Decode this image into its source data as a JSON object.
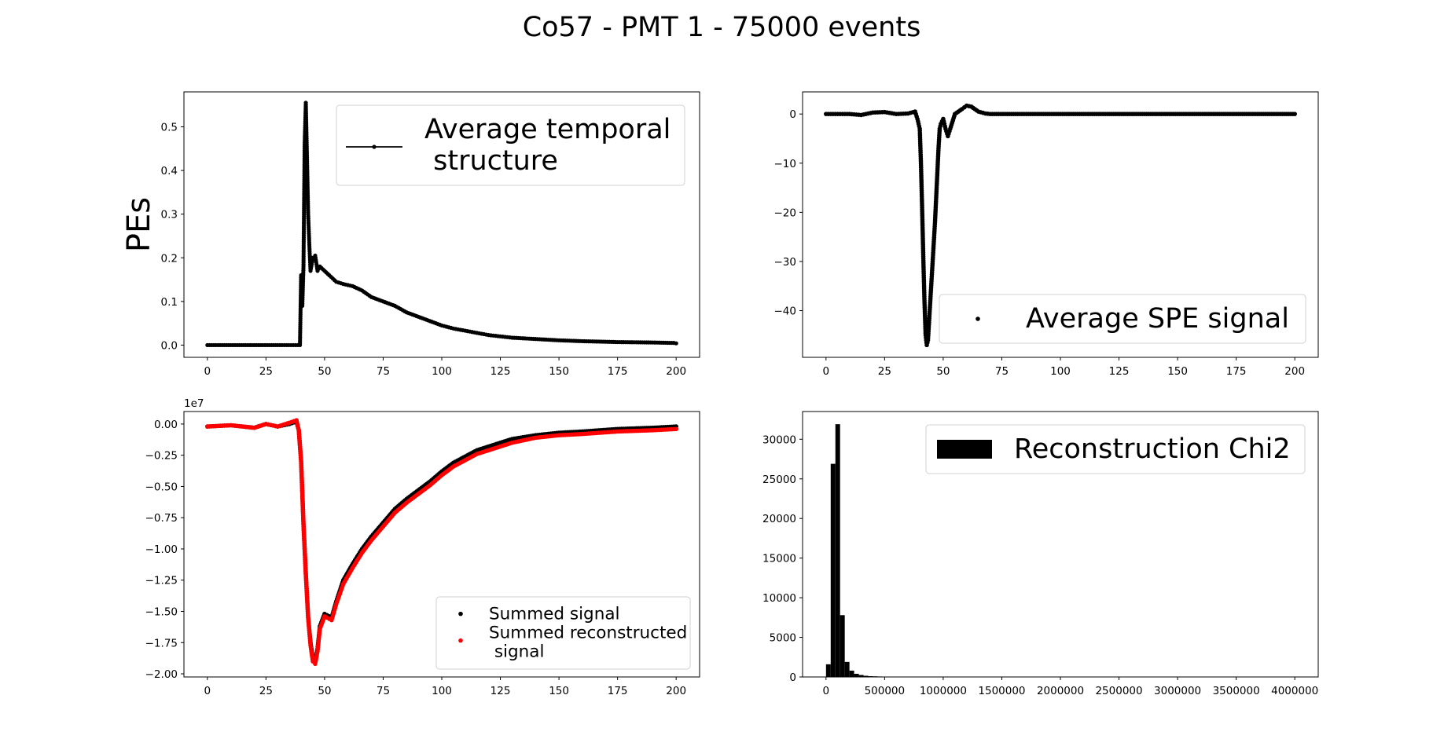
{
  "figure": {
    "suptitle": "Co57 - PMT 1 - 75000 events"
  },
  "chart_data": [
    {
      "id": "temporal",
      "type": "line",
      "marker": "dot",
      "ylabel": "PEs",
      "xlim": [
        -10,
        210
      ],
      "ylim": [
        -0.028,
        0.58
      ],
      "xticks": [
        0,
        25,
        50,
        75,
        100,
        125,
        150,
        175,
        200
      ],
      "yticks": [
        0.0,
        0.1,
        0.2,
        0.3,
        0.4,
        0.5
      ],
      "ytick_decimals": 1,
      "legend": {
        "position": "upper right",
        "entries": [
          "Average temporal",
          " structure"
        ]
      },
      "series": [
        {
          "name": "Average temporal structure",
          "color": "#000000",
          "points": [
            [
              0,
              0
            ],
            [
              10,
              0
            ],
            [
              20,
              0
            ],
            [
              30,
              0
            ],
            [
              39.5,
              0
            ],
            [
              40,
              0.16
            ],
            [
              40.5,
              0.09
            ],
            [
              41,
              0.18
            ],
            [
              41.5,
              0.46
            ],
            [
              42,
              0.555
            ],
            [
              42.5,
              0.43
            ],
            [
              43,
              0.3
            ],
            [
              43.5,
              0.23
            ],
            [
              44,
              0.17
            ],
            [
              45,
              0.2
            ],
            [
              46,
              0.205
            ],
            [
              47,
              0.17
            ],
            [
              48,
              0.18
            ],
            [
              50,
              0.17
            ],
            [
              52,
              0.16
            ],
            [
              55,
              0.145
            ],
            [
              58,
              0.14
            ],
            [
              62,
              0.135
            ],
            [
              66,
              0.125
            ],
            [
              70,
              0.11
            ],
            [
              75,
              0.1
            ],
            [
              80,
              0.09
            ],
            [
              85,
              0.075
            ],
            [
              90,
              0.065
            ],
            [
              95,
              0.055
            ],
            [
              100,
              0.045
            ],
            [
              105,
              0.038
            ],
            [
              110,
              0.033
            ],
            [
              115,
              0.028
            ],
            [
              120,
              0.023
            ],
            [
              125,
              0.02
            ],
            [
              130,
              0.017
            ],
            [
              140,
              0.014
            ],
            [
              150,
              0.011
            ],
            [
              160,
              0.009
            ],
            [
              175,
              0.007
            ],
            [
              190,
              0.006
            ],
            [
              199,
              0.005
            ],
            [
              200,
              0.004
            ]
          ]
        }
      ]
    },
    {
      "id": "spe",
      "type": "scatter",
      "xlim": [
        -10,
        210
      ],
      "ylim": [
        -49.5,
        4.5
      ],
      "xticks": [
        0,
        25,
        50,
        75,
        100,
        125,
        150,
        175,
        200
      ],
      "yticks": [
        0,
        -10,
        -20,
        -30,
        -40
      ],
      "ytick_decimals": 0,
      "legend": {
        "position": "lower right",
        "entries": [
          "Average SPE signal"
        ]
      },
      "series": [
        {
          "name": "Average SPE signal",
          "color": "#000000",
          "points": [
            [
              0,
              0
            ],
            [
              5,
              0
            ],
            [
              10,
              0
            ],
            [
              15,
              -0.2
            ],
            [
              20,
              0.3
            ],
            [
              25,
              0.4
            ],
            [
              30,
              0
            ],
            [
              35,
              0.1
            ],
            [
              38,
              0.5
            ],
            [
              39,
              -1
            ],
            [
              40,
              -3
            ],
            [
              40.5,
              -10
            ],
            [
              41,
              -19
            ],
            [
              41.5,
              -29
            ],
            [
              42,
              -38
            ],
            [
              42.5,
              -45
            ],
            [
              43,
              -47
            ],
            [
              43.5,
              -46
            ],
            [
              44,
              -42
            ],
            [
              44.5,
              -38
            ],
            [
              45,
              -34
            ],
            [
              45.5,
              -30
            ],
            [
              46,
              -26
            ],
            [
              46.5,
              -22
            ],
            [
              47,
              -17
            ],
            [
              47.5,
              -12
            ],
            [
              48,
              -7
            ],
            [
              48.5,
              -3
            ],
            [
              49,
              -2
            ],
            [
              50,
              -1
            ],
            [
              51,
              -3
            ],
            [
              52,
              -4.5
            ],
            [
              53,
              -3
            ],
            [
              55,
              0
            ],
            [
              58,
              1
            ],
            [
              60,
              1.7
            ],
            [
              62,
              1.5
            ],
            [
              65,
              0.5
            ],
            [
              68,
              0.1
            ],
            [
              70,
              0
            ],
            [
              80,
              0
            ],
            [
              90,
              0
            ],
            [
              100,
              0
            ],
            [
              120,
              0
            ],
            [
              150,
              0
            ],
            [
              175,
              0
            ],
            [
              200,
              0
            ]
          ]
        }
      ]
    },
    {
      "id": "summed",
      "type": "scatter",
      "offset_text": "1e7",
      "xlim": [
        -10,
        210
      ],
      "ylim": [
        -2.025,
        0.1
      ],
      "xticks": [
        0,
        25,
        50,
        75,
        100,
        125,
        150,
        175,
        200
      ],
      "yticks": [
        0.0,
        -0.25,
        -0.5,
        -0.75,
        -1.0,
        -1.25,
        -1.5,
        -1.75,
        -2.0
      ],
      "ytick_decimals": 2,
      "legend": {
        "position": "lower right",
        "entries": [
          "Summed signal",
          "Summed reconstructed",
          " signal"
        ]
      },
      "series": [
        {
          "name": "Summed signal",
          "color": "#000000",
          "points": [
            [
              0,
              -0.02
            ],
            [
              10,
              -0.01
            ],
            [
              20,
              -0.03
            ],
            [
              25,
              0.0
            ],
            [
              30,
              -0.02
            ],
            [
              35,
              0.0
            ],
            [
              38,
              0.02
            ],
            [
              39,
              -0.05
            ],
            [
              40,
              -0.3
            ],
            [
              41,
              -0.8
            ],
            [
              42,
              -1.2
            ],
            [
              43,
              -1.55
            ],
            [
              44,
              -1.75
            ],
            [
              45,
              -1.88
            ],
            [
              46,
              -1.9
            ],
            [
              47,
              -1.8
            ],
            [
              48,
              -1.62
            ],
            [
              50,
              -1.52
            ],
            [
              53,
              -1.55
            ],
            [
              55,
              -1.42
            ],
            [
              58,
              -1.25
            ],
            [
              62,
              -1.12
            ],
            [
              66,
              -1.0
            ],
            [
              70,
              -0.9
            ],
            [
              75,
              -0.79
            ],
            [
              80,
              -0.68
            ],
            [
              85,
              -0.6
            ],
            [
              90,
              -0.53
            ],
            [
              95,
              -0.46
            ],
            [
              100,
              -0.38
            ],
            [
              105,
              -0.31
            ],
            [
              110,
              -0.26
            ],
            [
              115,
              -0.21
            ],
            [
              120,
              -0.18
            ],
            [
              125,
              -0.15
            ],
            [
              130,
              -0.12
            ],
            [
              140,
              -0.09
            ],
            [
              150,
              -0.07
            ],
            [
              160,
              -0.06
            ],
            [
              175,
              -0.04
            ],
            [
              190,
              -0.03
            ],
            [
              200,
              -0.02
            ]
          ]
        },
        {
          "name": "Summed reconstructed signal",
          "color": "#ff0000",
          "points": [
            [
              0,
              -0.02
            ],
            [
              10,
              -0.01
            ],
            [
              20,
              -0.03
            ],
            [
              25,
              0.0
            ],
            [
              30,
              -0.02
            ],
            [
              35,
              0.01
            ],
            [
              38,
              0.03
            ],
            [
              39,
              -0.05
            ],
            [
              40,
              -0.3
            ],
            [
              41,
              -0.8
            ],
            [
              42,
              -1.2
            ],
            [
              43,
              -1.55
            ],
            [
              44,
              -1.77
            ],
            [
              45,
              -1.9
            ],
            [
              46,
              -1.92
            ],
            [
              47,
              -1.82
            ],
            [
              48,
              -1.64
            ],
            [
              50,
              -1.54
            ],
            [
              53,
              -1.57
            ],
            [
              55,
              -1.44
            ],
            [
              58,
              -1.28
            ],
            [
              62,
              -1.15
            ],
            [
              66,
              -1.03
            ],
            [
              70,
              -0.93
            ],
            [
              75,
              -0.82
            ],
            [
              80,
              -0.71
            ],
            [
              85,
              -0.63
            ],
            [
              90,
              -0.56
            ],
            [
              95,
              -0.49
            ],
            [
              100,
              -0.41
            ],
            [
              105,
              -0.34
            ],
            [
              110,
              -0.29
            ],
            [
              115,
              -0.24
            ],
            [
              120,
              -0.21
            ],
            [
              125,
              -0.18
            ],
            [
              130,
              -0.15
            ],
            [
              140,
              -0.11
            ],
            [
              150,
              -0.09
            ],
            [
              160,
              -0.08
            ],
            [
              175,
              -0.06
            ],
            [
              190,
              -0.05
            ],
            [
              200,
              -0.04
            ]
          ]
        }
      ]
    },
    {
      "id": "chi2",
      "type": "bar",
      "xlim": [
        -200000,
        4200000
      ],
      "ylim": [
        0,
        33500
      ],
      "xticks": [
        0,
        500000,
        1000000,
        1500000,
        2000000,
        2500000,
        3000000,
        3500000,
        4000000
      ],
      "yticks": [
        0,
        5000,
        10000,
        15000,
        20000,
        25000,
        30000
      ],
      "ytick_decimals": 0,
      "bin_width": 40000,
      "legend": {
        "position": "upper right",
        "entries": [
          "Reconstruction Chi2"
        ]
      },
      "series": [
        {
          "name": "Reconstruction Chi2",
          "color": "#000000",
          "bins": [
            [
              0,
              1600
            ],
            [
              40000,
              26900
            ],
            [
              80000,
              31900
            ],
            [
              120000,
              7800
            ],
            [
              160000,
              1900
            ],
            [
              200000,
              800
            ],
            [
              240000,
              400
            ],
            [
              280000,
              250
            ],
            [
              320000,
              150
            ],
            [
              360000,
              100
            ],
            [
              400000,
              80
            ],
            [
              440000,
              60
            ],
            [
              480000,
              50
            ],
            [
              520000,
              40
            ],
            [
              560000,
              30
            ],
            [
              600000,
              25
            ],
            [
              640000,
              20
            ],
            [
              680000,
              15
            ],
            [
              720000,
              10
            ],
            [
              760000,
              8
            ],
            [
              800000,
              5
            ]
          ]
        }
      ]
    }
  ]
}
